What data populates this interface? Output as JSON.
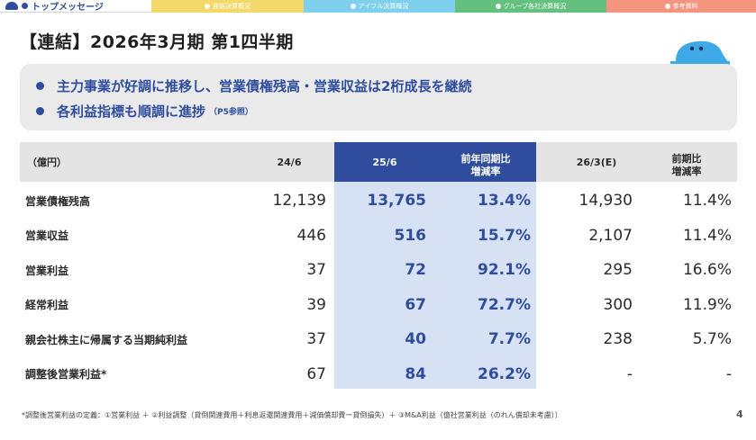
{
  "tabs": [
    {
      "label": "トップメッセージ",
      "active": true
    },
    {
      "label": "連結決算概況",
      "active": false
    },
    {
      "label": "アイフル決算概況",
      "active": false
    },
    {
      "label": "グループ各社決算概況",
      "active": false
    },
    {
      "label": "参考資料",
      "active": false
    }
  ],
  "title": "【連結】2026年3月期 第1四半期",
  "highlights": [
    {
      "text": "主力事業が好調に推移し、営業債権残高・営業収益は2桁成長を継続",
      "note": ""
    },
    {
      "text": "各利益指標も順調に進捗",
      "note": "（P5参照）"
    }
  ],
  "table": {
    "headers": {
      "unit": "（億円）",
      "col1": "24/6",
      "col2": "25/6",
      "col3_line1": "前年同期比",
      "col3_line2": "増減率",
      "col4": "26/3(E)",
      "col5_line1": "前期比",
      "col5_line2": "増減率"
    },
    "rows": [
      {
        "label": "営業債権残高",
        "v1": "12,139",
        "v2": "13,765",
        "v3": "13.4%",
        "v4": "14,930",
        "v5": "11.4%"
      },
      {
        "label": "営業収益",
        "v1": "446",
        "v2": "516",
        "v3": "15.7%",
        "v4": "2,107",
        "v5": "11.4%"
      },
      {
        "label": "営業利益",
        "v1": "37",
        "v2": "72",
        "v3": "92.1%",
        "v4": "295",
        "v5": "16.6%"
      },
      {
        "label": "経常利益",
        "v1": "39",
        "v2": "67",
        "v3": "72.7%",
        "v4": "300",
        "v5": "11.9%"
      },
      {
        "label": "親会社株主に帰属する当期純利益",
        "v1": "37",
        "v2": "40",
        "v3": "7.7%",
        "v4": "238",
        "v5": "5.7%"
      },
      {
        "label": "調整後営業利益*",
        "v1": "67",
        "v2": "84",
        "v3": "26.2%",
        "v4": "-",
        "v5": "-"
      }
    ]
  },
  "footnote": "*調整後営業利益の定義：①営業利益 ＋ ②利益調整（貸倒関連費用＋利息返還関連費用＋減価償却費ー貸倒損失）＋ ③M&A利益（億社営業利益（のれん償却未考慮））",
  "page_number": "4",
  "colors": {
    "primary": "#2f4d9c",
    "highlight_col": "#d6e2f4",
    "header_bg": "#e4e4e4"
  }
}
